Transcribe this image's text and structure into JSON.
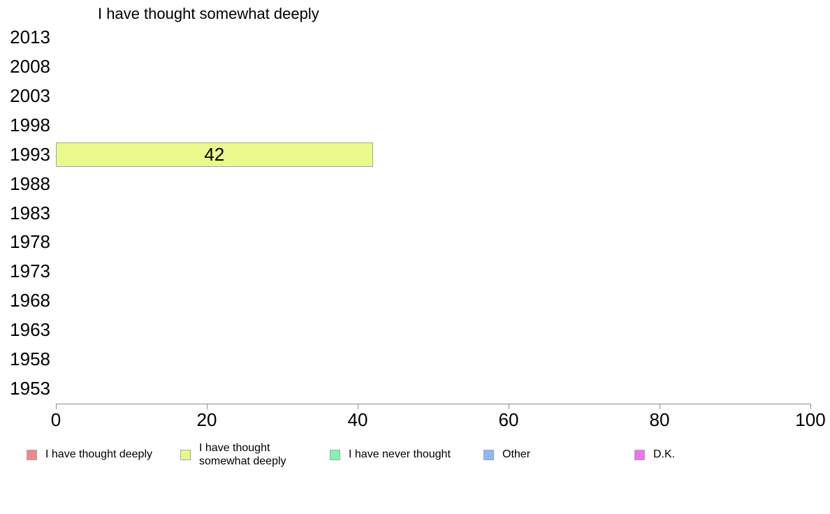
{
  "chart_data": {
    "type": "bar",
    "orientation": "horizontal",
    "title": "I have thought somewhat deeply",
    "categories": [
      "2013",
      "2008",
      "2003",
      "1998",
      "1993",
      "1988",
      "1983",
      "1978",
      "1973",
      "1968",
      "1963",
      "1958",
      "1953"
    ],
    "xlim": [
      0,
      100
    ],
    "x_ticks": [
      0,
      20,
      40,
      60,
      80,
      100
    ],
    "grid": false,
    "legend_position": "bottom",
    "bar_labels_visible": true,
    "series": [
      {
        "name": "I have thought deeply",
        "color": "#f28888",
        "data": {}
      },
      {
        "name": "I have thought somewhat deeply",
        "color": "#e9f98c",
        "data": {
          "1993": 42
        }
      },
      {
        "name": "I have never thought",
        "color": "#82f2af",
        "data": {}
      },
      {
        "name": "Other",
        "color": "#8ab8f8",
        "data": {}
      },
      {
        "name": "D.K.",
        "color": "#ee74f0",
        "data": {}
      }
    ],
    "colors": {
      "axis": "#8c8c8c",
      "bar_border": "#a3a3a3",
      "text": "#000000",
      "background": "#ffffff"
    }
  }
}
